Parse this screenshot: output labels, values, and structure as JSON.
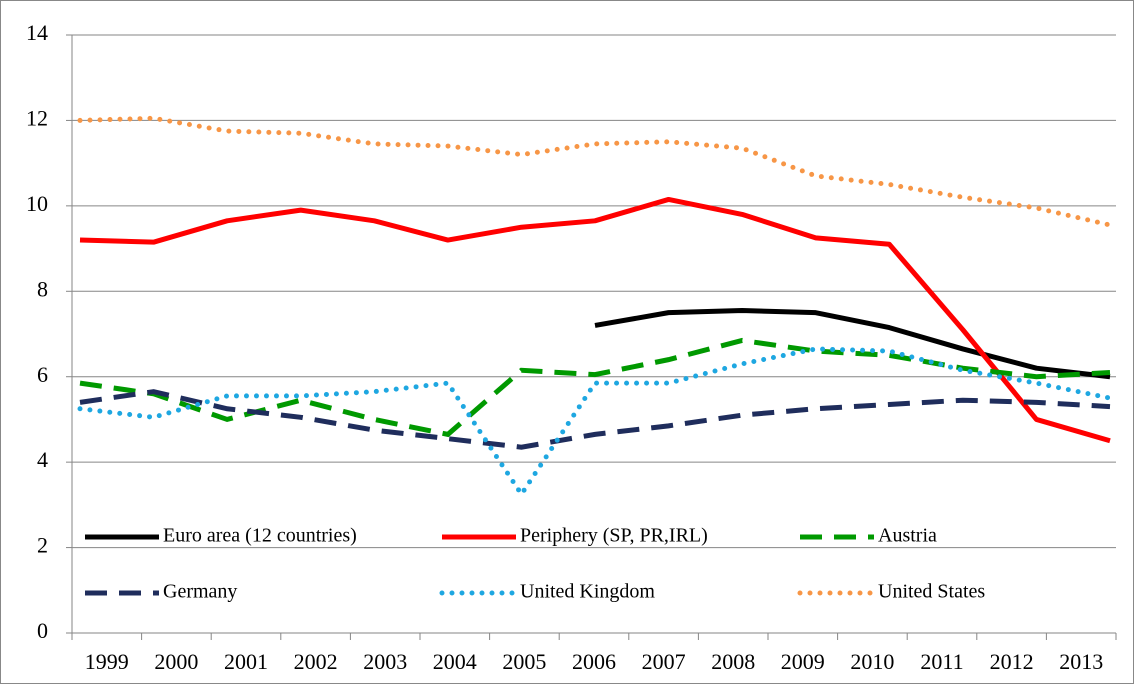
{
  "chart_data": {
    "type": "line",
    "categories": [
      "1999",
      "2000",
      "2001",
      "2002",
      "2003",
      "2004",
      "2005",
      "2006",
      "2007",
      "2008",
      "2009",
      "2010",
      "2011",
      "2012",
      "2013"
    ],
    "series": [
      {
        "name": "Euro area (12 countries)",
        "color": "#000000",
        "style": "solid",
        "values": [
          null,
          null,
          null,
          null,
          null,
          null,
          null,
          7.2,
          7.5,
          7.55,
          7.5,
          7.15,
          6.65,
          6.2,
          6.0
        ]
      },
      {
        "name": "Periphery (SP, PR,IRL)",
        "color": "#ff0000",
        "style": "solid",
        "values": [
          9.2,
          9.15,
          9.65,
          9.9,
          9.65,
          9.2,
          9.5,
          9.65,
          10.15,
          9.8,
          9.25,
          9.1,
          7.1,
          5.0,
          4.5
        ]
      },
      {
        "name": "Austria",
        "color": "#009900",
        "style": "dashed",
        "values": [
          5.85,
          5.6,
          5.0,
          5.45,
          5.0,
          4.65,
          6.15,
          6.05,
          6.4,
          6.85,
          6.6,
          6.5,
          6.2,
          6.0,
          6.1
        ]
      },
      {
        "name": "Germany",
        "color": "#1f2d5c",
        "style": "dashed",
        "values": [
          5.4,
          5.65,
          5.25,
          5.05,
          4.75,
          4.55,
          4.35,
          4.65,
          4.85,
          5.1,
          5.25,
          5.35,
          5.45,
          5.4,
          5.3
        ]
      },
      {
        "name": "United Kingdom",
        "color": "#1ea7e1",
        "style": "dotted",
        "values": [
          5.25,
          5.05,
          5.55,
          5.55,
          5.65,
          5.85,
          3.25,
          5.85,
          5.85,
          6.3,
          6.65,
          6.6,
          6.15,
          5.85,
          5.5
        ]
      },
      {
        "name": "United States",
        "color": "#f79646",
        "style": "dotted",
        "values": [
          12.0,
          12.05,
          11.75,
          11.7,
          11.45,
          11.4,
          11.2,
          11.45,
          11.5,
          11.35,
          10.7,
          10.5,
          10.2,
          9.95,
          9.55
        ]
      }
    ],
    "ylim": [
      0,
      14
    ],
    "yticks": [
      0,
      2,
      4,
      6,
      8,
      10,
      12,
      14
    ],
    "grid": true
  }
}
